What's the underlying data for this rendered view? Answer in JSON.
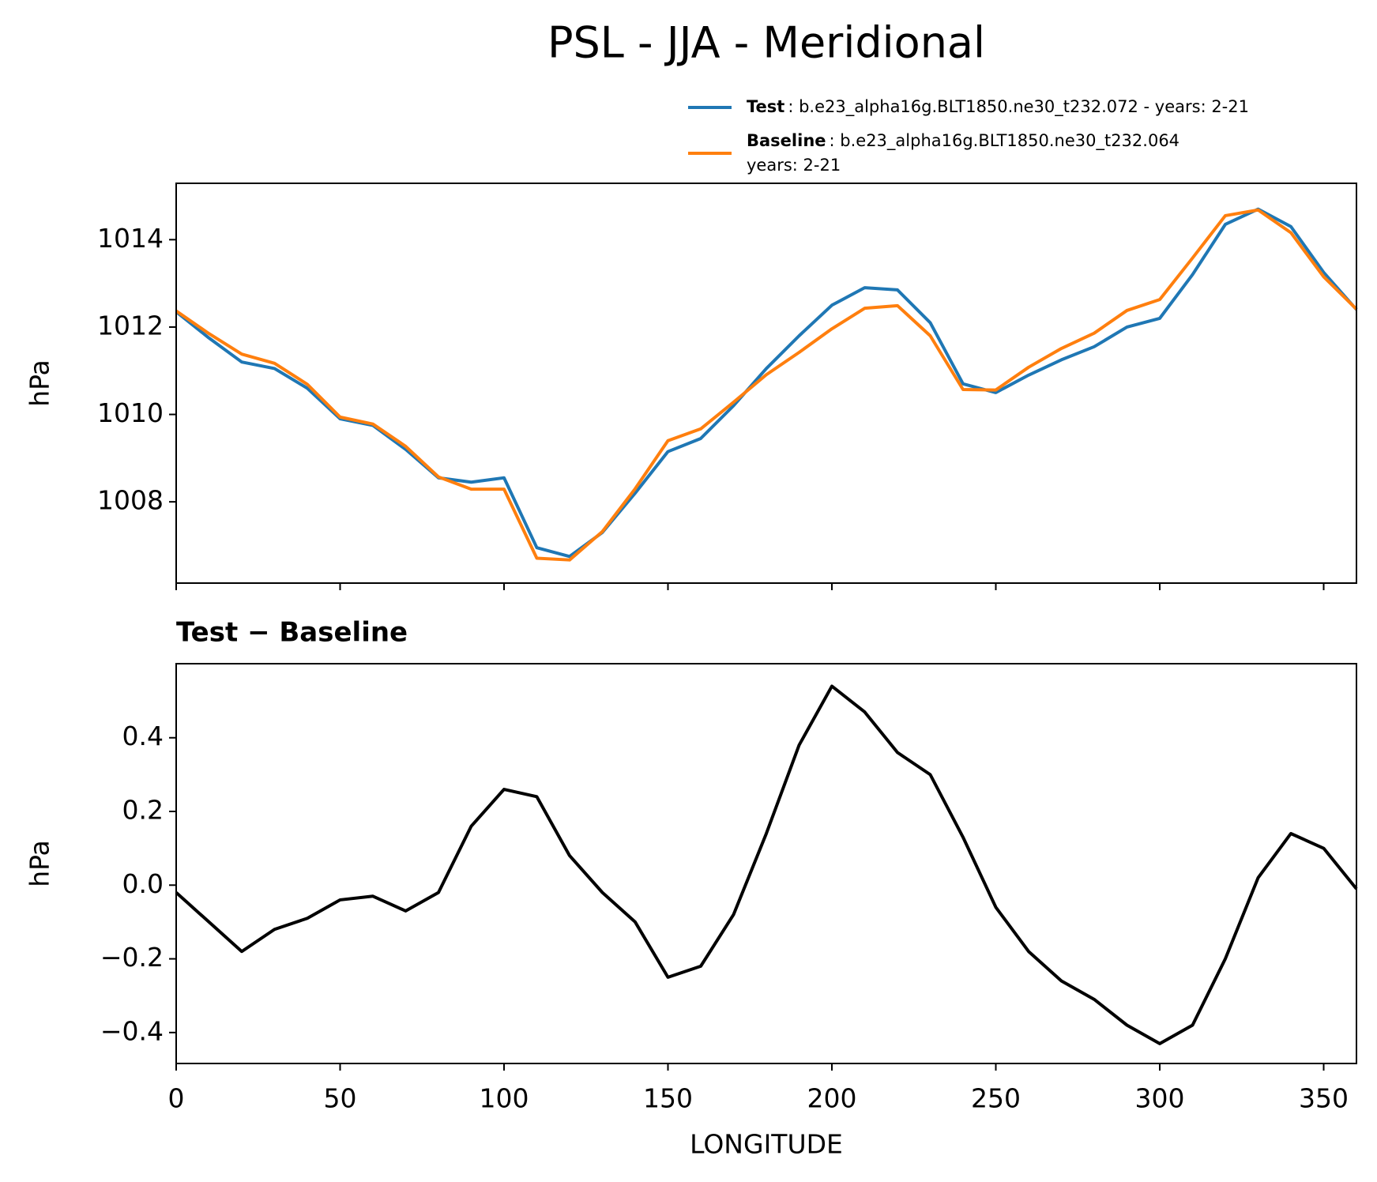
{
  "title": "PSL - JJA - Meridional",
  "chart_data": [
    {
      "type": "line",
      "ylabel": "hPa",
      "x": [
        0,
        10,
        20,
        30,
        40,
        50,
        60,
        70,
        80,
        90,
        100,
        110,
        120,
        130,
        140,
        150,
        160,
        170,
        180,
        190,
        200,
        210,
        220,
        230,
        240,
        250,
        260,
        270,
        280,
        290,
        300,
        310,
        320,
        330,
        340,
        350,
        360
      ],
      "xlim": [
        0,
        360
      ],
      "xticks": [
        0,
        50,
        100,
        150,
        200,
        250,
        300,
        350
      ],
      "show_xtick_labels": false,
      "ylim": [
        1006.14,
        1015.29
      ],
      "yticks": [
        1008,
        1010,
        1012,
        1014
      ],
      "series": [
        {
          "name": "Test",
          "label": [
            ": b.e23_alpha16g.BLT1850.ne30_t232.072 - years: 2-21"
          ],
          "color": "#1f77b4",
          "values": [
            1012.35,
            1011.75,
            1011.2,
            1011.05,
            1010.6,
            1009.9,
            1009.75,
            1009.2,
            1008.55,
            1008.45,
            1008.55,
            1006.95,
            1006.75,
            1007.3,
            1008.2,
            1009.15,
            1009.45,
            1010.2,
            1011.05,
            1011.8,
            1012.5,
            1012.9,
            1012.85,
            1012.1,
            1010.7,
            1010.5,
            1010.9,
            1011.25,
            1011.55,
            1012.0,
            1012.2,
            1013.2,
            1014.35,
            1014.7,
            1014.3,
            1013.25,
            1012.4
          ]
        },
        {
          "name": "Baseline",
          "label": [
            ": b.e23_alpha16g.BLT1850.ne30_t232.064",
            "years: 2-21"
          ],
          "color": "#ff7f0e",
          "values": [
            1012.37,
            1011.85,
            1011.38,
            1011.17,
            1010.69,
            1009.94,
            1009.78,
            1009.27,
            1008.57,
            1008.29,
            1008.29,
            1006.71,
            1006.67,
            1007.32,
            1008.3,
            1009.4,
            1009.67,
            1010.28,
            1010.91,
            1011.42,
            1011.96,
            1012.43,
            1012.49,
            1011.8,
            1010.57,
            1010.56,
            1011.08,
            1011.51,
            1011.86,
            1012.38,
            1012.63,
            1013.58,
            1014.55,
            1014.68,
            1014.16,
            1013.15,
            1012.41
          ]
        }
      ]
    },
    {
      "type": "line",
      "title": "Test − Baseline",
      "ylabel": "hPa",
      "xlabel": "LONGITUDE",
      "x": [
        0,
        10,
        20,
        30,
        40,
        50,
        60,
        70,
        80,
        90,
        100,
        110,
        120,
        130,
        140,
        150,
        160,
        170,
        180,
        190,
        200,
        210,
        220,
        230,
        240,
        250,
        260,
        270,
        280,
        290,
        300,
        310,
        320,
        330,
        340,
        350,
        360
      ],
      "xlim": [
        0,
        360
      ],
      "xticks": [
        0,
        50,
        100,
        150,
        200,
        250,
        300,
        350
      ],
      "show_xtick_labels": true,
      "ylim": [
        -0.484,
        0.601
      ],
      "yticks": [
        {
          "value": -0.4,
          "label": "−0.4"
        },
        {
          "value": -0.2,
          "label": "−0.2"
        },
        {
          "value": 0,
          "label": "0.0"
        },
        0.2,
        0.4
      ],
      "series": [
        {
          "color": "#000000",
          "values": [
            -0.02,
            -0.1,
            -0.18,
            -0.12,
            -0.09,
            -0.04,
            -0.03,
            -0.07,
            -0.02,
            0.16,
            0.26,
            0.24,
            0.08,
            -0.02,
            -0.1,
            -0.25,
            -0.22,
            -0.08,
            0.14,
            0.38,
            0.54,
            0.47,
            0.36,
            0.3,
            0.13,
            -0.06,
            -0.18,
            -0.26,
            -0.31,
            -0.38,
            -0.43,
            -0.38,
            -0.2,
            0.02,
            0.14,
            0.1,
            -0.01
          ]
        }
      ]
    }
  ]
}
